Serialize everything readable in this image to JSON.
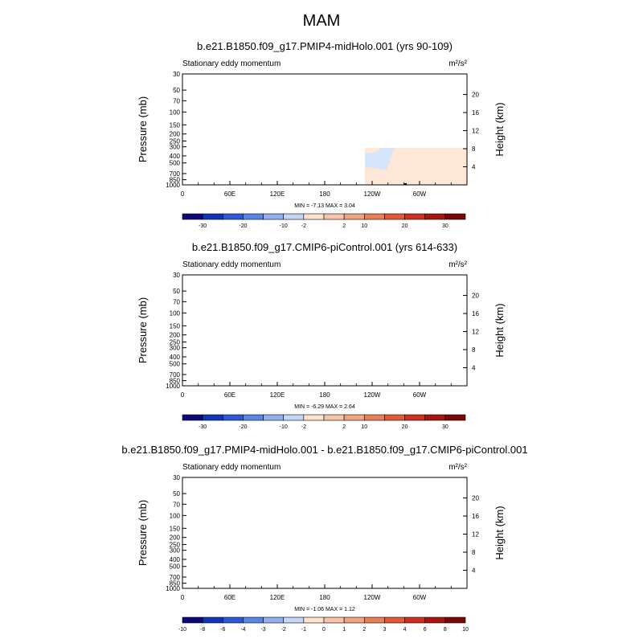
{
  "figure": {
    "title": "MAM"
  },
  "chart_data": [
    {
      "type": "heatmap",
      "title": "b.e21.B1850.f09_g17.PMIP4-midHolo.001 (yrs 90-109)",
      "subtitle_left": "Stationary eddy momentum",
      "units": "m²/s²",
      "ylabel": "Pressure (mb)",
      "ylabel_right": "Height (km)",
      "x_ticks": [
        "0",
        "60E",
        "120E",
        "180",
        "120W",
        "60W"
      ],
      "y_ticks": [
        "30",
        "50",
        "70",
        "100",
        "150",
        "200",
        "250",
        "300",
        "400",
        "500",
        "700",
        "850",
        "1000"
      ],
      "y_right_ticks": [
        "4",
        "8",
        "12",
        "16",
        "20"
      ],
      "stats": "MIN =  -7.13  MAX =   3.04",
      "colorbar_labels": [
        "-30",
        "-20",
        "-10",
        "-2",
        "2",
        "10",
        "20",
        "30"
      ]
    },
    {
      "type": "heatmap",
      "title": "b.e21.B1850.f09_g17.CMIP6-piControl.001 (yrs 614-633)",
      "subtitle_left": "Stationary eddy momentum",
      "units": "m²/s²",
      "ylabel": "Pressure (mb)",
      "ylabel_right": "Height (km)",
      "x_ticks": [
        "0",
        "60E",
        "120E",
        "180",
        "120W",
        "60W"
      ],
      "y_ticks": [
        "30",
        "50",
        "70",
        "100",
        "150",
        "200",
        "250",
        "300",
        "400",
        "500",
        "700",
        "850",
        "1000"
      ],
      "y_right_ticks": [
        "4",
        "8",
        "12",
        "16",
        "20"
      ],
      "stats": "MIN =  -6.29  MAX =   2.64",
      "colorbar_labels": [
        "-30",
        "-20",
        "-10",
        "-2",
        "2",
        "10",
        "20",
        "30"
      ]
    },
    {
      "type": "heatmap",
      "title": "b.e21.B1850.f09_g17.PMIP4-midHolo.001 - b.e21.B1850.f09_g17.CMIP6-piControl.001",
      "subtitle_left": "Stationary eddy momentum",
      "units": "m²/s²",
      "ylabel": "Pressure (mb)",
      "ylabel_right": "Height (km)",
      "x_ticks": [
        "0",
        "60E",
        "120E",
        "180",
        "120W",
        "60W"
      ],
      "y_ticks": [
        "30",
        "50",
        "70",
        "100",
        "150",
        "200",
        "250",
        "300",
        "400",
        "500",
        "700",
        "850",
        "1000"
      ],
      "y_right_ticks": [
        "4",
        "8",
        "12",
        "16",
        "20"
      ],
      "stats": "MIN =  -1.06  MAX =   1.12",
      "colorbar_labels": [
        "-10",
        "-8",
        "-6",
        "-4",
        "-3",
        "-2",
        "-1",
        "0",
        "1",
        "2",
        "3",
        "4",
        "6",
        "8",
        "10"
      ]
    }
  ],
  "palette": {
    "colors": [
      "#0a0a7a",
      "#1234b8",
      "#2c5ad6",
      "#5b84e8",
      "#90b0f0",
      "#c2d6f6",
      "#fde3cf",
      "#f6c4a8",
      "#f1a47e",
      "#ea7e55",
      "#e25a35",
      "#cc3020",
      "#a81410",
      "#7a0606"
    ],
    "light_neg": "#d6e6fa",
    "light_pos": "#fde7d6",
    "mid_neg": "#a9c3f4",
    "mid_pos": "#f2b69b",
    "terrain": "#000000"
  }
}
